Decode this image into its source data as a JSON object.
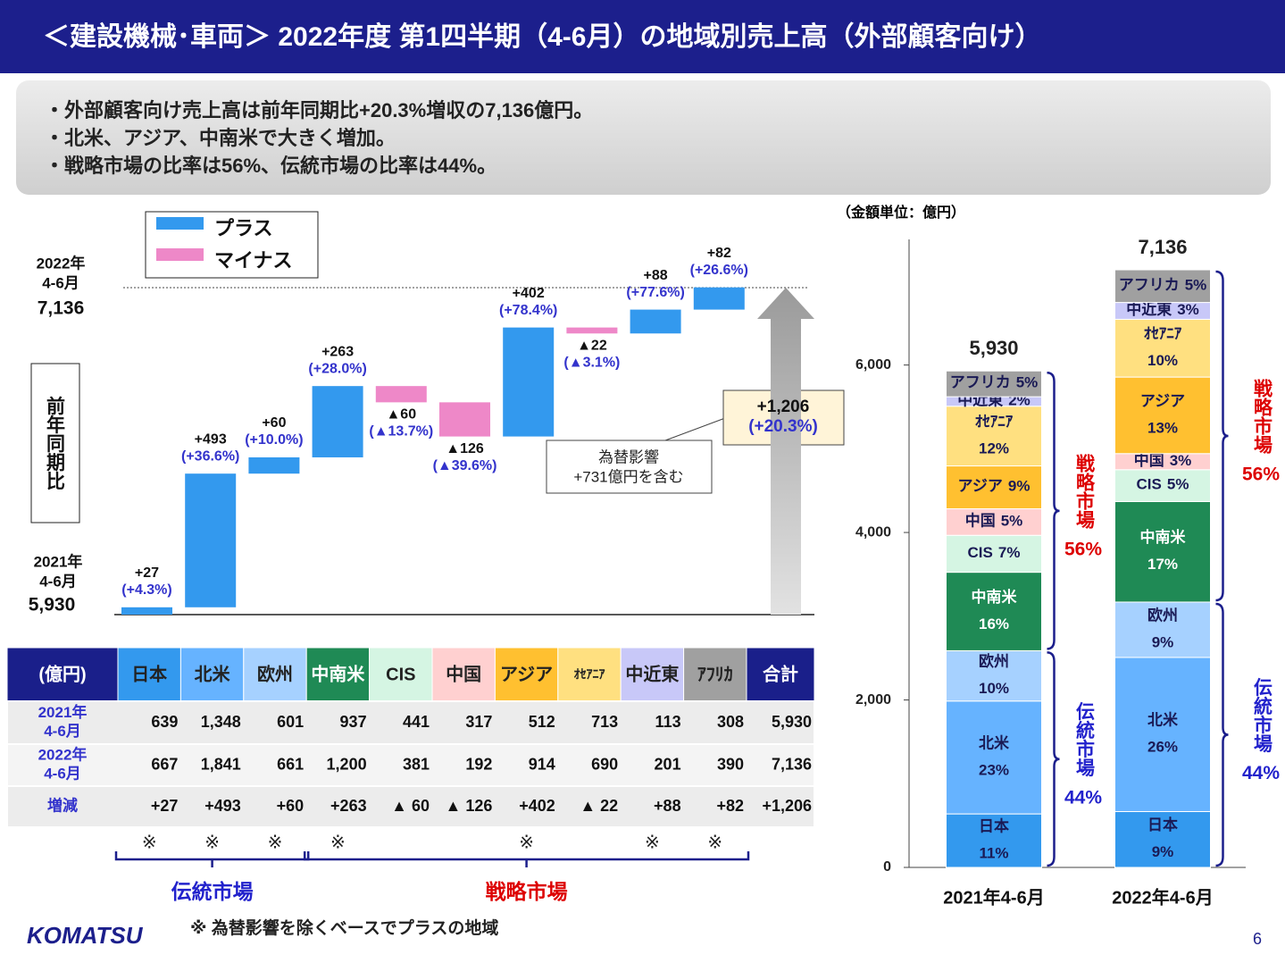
{
  "header": {
    "title": "＜建設機械･車両＞ 2022年度 第1四半期（4-6月）の地域別売上高（外部顧客向け）"
  },
  "summary": [
    "・外部顧客向け売上高は前年同期比+20.3%増収の7,136億円。",
    "・北米、アジア、中南米で大きく増加。",
    "・戦略市場の比率は56%、伝統市場の比率は44%。"
  ],
  "chart_data": [
    {
      "type": "waterfall",
      "y_label": "前年同期比",
      "legend": [
        {
          "name": "プラス",
          "color": "#3399ee"
        },
        {
          "name": "マイナス",
          "color": "#ee88c8"
        }
      ],
      "start": {
        "label": [
          "2021年",
          "4-6月"
        ],
        "value": 5930,
        "value_label": "5,930"
      },
      "end": {
        "label": [
          "2022年",
          "4-6月"
        ],
        "value": 7136,
        "value_label": "7,136"
      },
      "values": [
        27,
        493,
        60,
        263,
        -60,
        -126,
        402,
        -22,
        88,
        82
      ],
      "value_labels": [
        "+27",
        "+493",
        "+60",
        "+263",
        "▲60",
        "▲126",
        "+402",
        "▲22",
        "+88",
        "+82"
      ],
      "change_labels": [
        "(+4.3%)",
        "(+36.6%)",
        "(+10.0%)",
        "(+28.0%)",
        "(▲13.7%)",
        "(▲39.6%)",
        "(+78.4%)",
        "(▲3.1%)",
        "(+77.6%)",
        "(+26.6%)"
      ],
      "total": {
        "value": 1206,
        "value_label": "+1,206",
        "change_label": "(+20.3%)"
      },
      "annotation": [
        "為替影響",
        "+731億円を含む"
      ]
    },
    {
      "type": "stacked-bar",
      "unit": "（金額単位：億円）",
      "categories": [
        "2021年4-6月",
        "2022年4-6月"
      ],
      "totals": [
        {
          "value": 5930,
          "label": "5,930"
        },
        {
          "value": 7136,
          "label": "7,136"
        }
      ],
      "ylim": [
        0,
        7500
      ],
      "yticks": [
        0,
        {
          "value": 2000,
          "label": "2,000"
        },
        {
          "value": 4000,
          "label": "4,000"
        },
        {
          "value": 6000,
          "label": "6,000"
        }
      ],
      "groups": [
        {
          "name": "伝統市場",
          "color": "#2222cc",
          "share_labels": [
            "44%",
            "44%"
          ],
          "series": [
            {
              "name": "日本",
              "color": "#3399ee",
              "values": [
                639,
                667
              ],
              "share_labels": [
                "11%",
                "9%"
              ]
            },
            {
              "name": "北米",
              "color": "#66b3ff",
              "values": [
                1348,
                1841
              ],
              "share_labels": [
                "23%",
                "26%"
              ]
            },
            {
              "name": "欧州",
              "color": "#a6d1ff",
              "values": [
                601,
                661
              ],
              "share_labels": [
                "10%",
                "9%"
              ]
            }
          ]
        },
        {
          "name": "戦略市場",
          "color": "#dd0000",
          "share_labels": [
            "56%",
            "56%"
          ],
          "series": [
            {
              "name": "中南米",
              "color": "#1f8a55",
              "values": [
                937,
                1200
              ],
              "share_labels": [
                "16%",
                "17%"
              ]
            },
            {
              "name": "CIS",
              "color": "#d5f5e3",
              "values": [
                441,
                381
              ],
              "share_labels": [
                "7%",
                "5%"
              ]
            },
            {
              "name": "中国",
              "color": "#ffd0d0",
              "values": [
                317,
                192
              ],
              "share_labels": [
                "5%",
                "3%"
              ]
            },
            {
              "name": "アジア",
              "color": "#ffc030",
              "values": [
                512,
                914
              ],
              "share_labels": [
                "9%",
                "13%"
              ]
            },
            {
              "name": "ｵｾｱﾆｱ",
              "color": "#ffe080",
              "values": [
                713,
                690
              ],
              "share_labels": [
                "12%",
                "10%"
              ]
            },
            {
              "name": "中近東",
              "color": "#c8c8f8",
              "values": [
                113,
                201
              ],
              "share_labels": [
                "2%",
                "3%"
              ]
            },
            {
              "name": "アフリカ",
              "color": "#a0a0a0",
              "values": [
                308,
                390
              ],
              "share_labels": [
                "5%",
                "5%"
              ]
            }
          ]
        }
      ]
    }
  ],
  "table": {
    "header": [
      "(億円)",
      "日本",
      "北米",
      "欧州",
      "中南米",
      "CIS",
      "中国",
      "アジア",
      "ｵｾｱﾆｱ",
      "中近東",
      "ｱﾌﾘｶ",
      "合計"
    ],
    "rows": [
      {
        "label": [
          "2021年",
          "4-6月"
        ],
        "cells": [
          "639",
          "1,348",
          "601",
          "937",
          "441",
          "317",
          "512",
          "713",
          "113",
          "308",
          "5,930"
        ]
      },
      {
        "label": [
          "2022年",
          "4-6月"
        ],
        "cells": [
          "667",
          "1,841",
          "661",
          "1,200",
          "381",
          "192",
          "914",
          "690",
          "201",
          "390",
          "7,136"
        ]
      },
      {
        "label": [
          "増減"
        ],
        "cells": [
          "+27",
          "+493",
          "+60",
          "+263",
          "▲ 60",
          "▲ 126",
          "+402",
          "▲ 22",
          "+88",
          "+82",
          "+1,206"
        ]
      }
    ]
  },
  "fx_marks": [
    "※",
    "※",
    "※",
    "※",
    null,
    null,
    "※",
    null,
    "※",
    "※"
  ],
  "footnote": "※ 為替影響を除くベースでプラスの地域",
  "logo": "KOMATSU",
  "page_number": "6"
}
